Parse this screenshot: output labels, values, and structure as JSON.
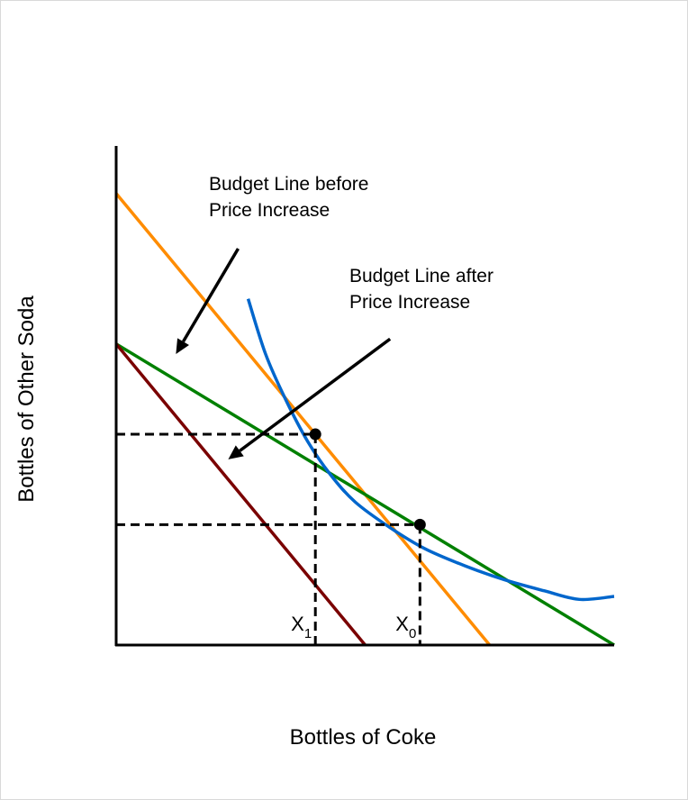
{
  "chart_data": {
    "type": "line",
    "xlabel": "Bottles of Coke",
    "ylabel": "Bottles of Other Soda",
    "xlim": [
      0,
      100
    ],
    "ylim": [
      0,
      100
    ],
    "grid": false,
    "series": [
      {
        "id": "budget_before",
        "color": "#ff8c00",
        "x": [
          0,
          75
        ],
        "y": [
          90,
          0
        ]
      },
      {
        "id": "budget_after",
        "color": "#008000",
        "x": [
          0,
          100
        ],
        "y": [
          60,
          0
        ]
      },
      {
        "id": "budget_parallel",
        "color": "#7a0000",
        "x": [
          0,
          50
        ],
        "y": [
          60,
          0
        ]
      },
      {
        "id": "indifference_curve",
        "color": "#0066cc",
        "x": [
          26.5,
          30,
          34,
          38.5,
          43,
          48,
          55,
          62,
          70,
          78,
          86,
          93,
          100
        ],
        "y": [
          69,
          58,
          49,
          40.5,
          34,
          28.5,
          23.4,
          19.2,
          15.8,
          13,
          10.8,
          9.1,
          9.7
        ]
      }
    ],
    "points": [
      {
        "x": 40,
        "y": 42
      },
      {
        "x": 61,
        "y": 24
      }
    ],
    "guides": [
      {
        "x": 40,
        "y": 42
      },
      {
        "x": 61,
        "y": 24
      }
    ],
    "x_markers": [
      {
        "x": 40,
        "base": "X",
        "sub": "1"
      },
      {
        "x": 61,
        "base": "X",
        "sub": "0"
      }
    ],
    "annotations": [
      {
        "lines": [
          "Budget Line before",
          "Price Increase"
        ],
        "arrow_from": [
          24.5,
          79
        ],
        "arrow_to": [
          12,
          58
        ]
      },
      {
        "lines": [
          "Budget Line after",
          "Price Increase"
        ],
        "arrow_from": [
          55,
          61
        ],
        "arrow_to": [
          22.5,
          37
        ]
      }
    ]
  }
}
